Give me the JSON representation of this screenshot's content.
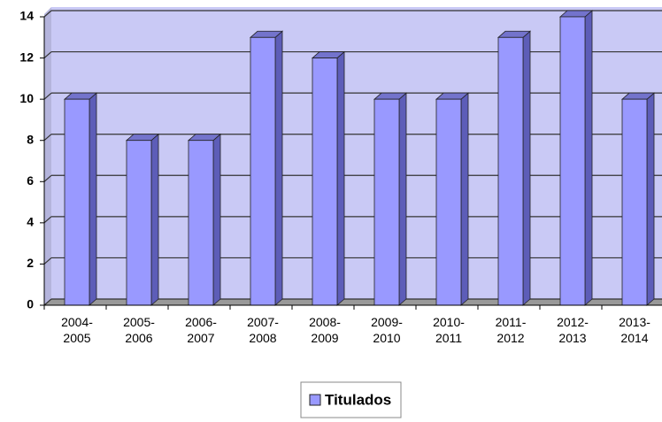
{
  "chart_data": {
    "type": "bar",
    "categories": [
      "2004-2005",
      "2005-2006",
      "2006-2007",
      "2007-2008",
      "2008-2009",
      "2009-2010",
      "2010-2011",
      "2011-2012",
      "2012-2013",
      "2013-2014"
    ],
    "series": [
      {
        "name": "Titulados",
        "color": "#9999ff",
        "values": [
          10,
          8,
          8,
          13,
          12,
          10,
          10,
          13,
          14,
          10
        ]
      }
    ],
    "ylim": [
      0,
      14
    ],
    "yticks": [
      0,
      2,
      4,
      6,
      8,
      10,
      12,
      14
    ],
    "grid": true,
    "legend": "bottom"
  }
}
